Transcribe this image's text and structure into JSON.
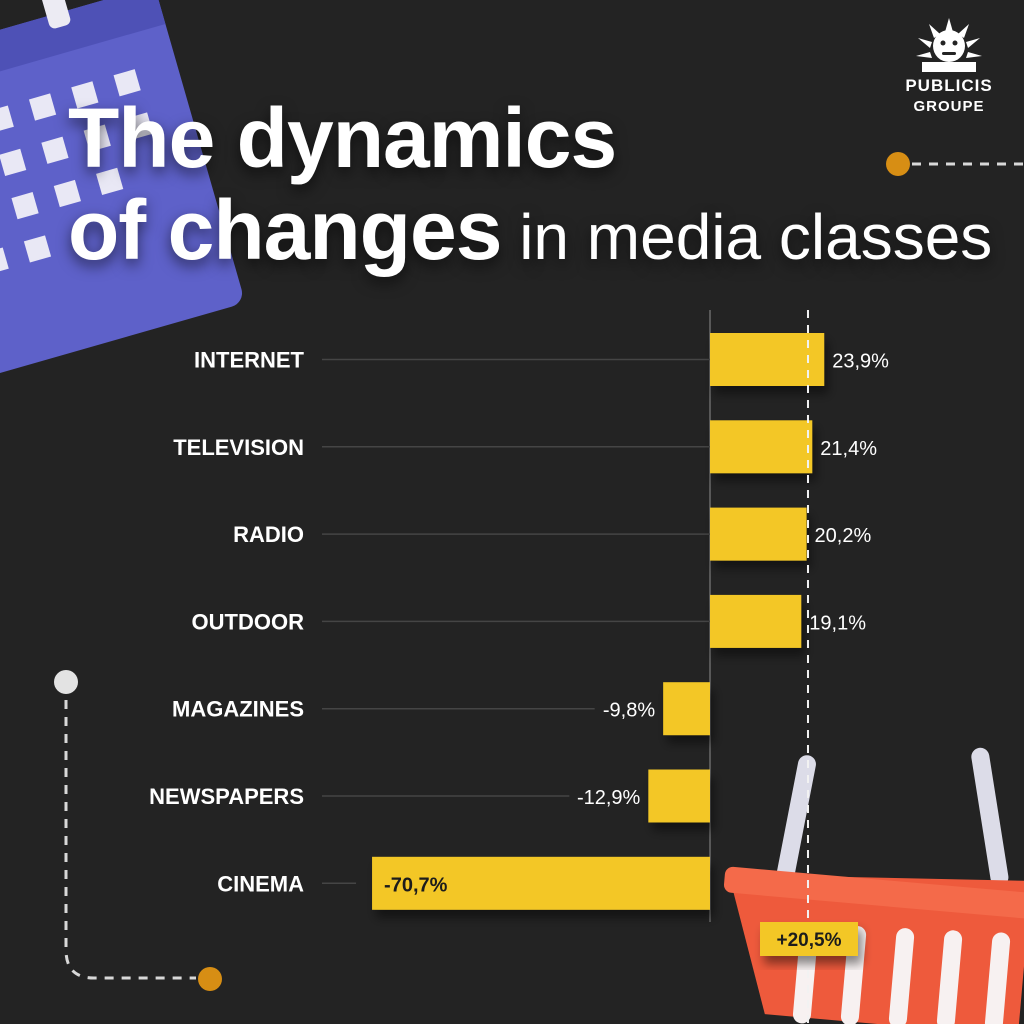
{
  "title": {
    "line1": "The dynamics",
    "line2_bold": "of changes",
    "line2_light": " in media classes"
  },
  "logo": {
    "line1": "PUBLICIS",
    "line2": "GROUPE"
  },
  "colors": {
    "background": "#232323",
    "bar": "#F3C727",
    "basket": "#EE5A3C",
    "calendar": "#5E61C9",
    "accent_dot": "#D78E14"
  },
  "chart_data": {
    "type": "bar",
    "orientation": "horizontal",
    "categories": [
      "INTERNET",
      "TELEVISION",
      "RADIO",
      "OUTDOOR",
      "MAGAZINES",
      "NEWSPAPERS",
      "CINEMA"
    ],
    "values": [
      23.9,
      21.4,
      20.2,
      19.1,
      -9.8,
      -12.9,
      -70.7
    ],
    "value_labels": [
      "23,9%",
      "21,4%",
      "20,2%",
      "19,1%",
      "-9,8%",
      "-12,9%",
      "-70,7%"
    ],
    "reference_line": {
      "value": 20.5,
      "label": "+20,5%"
    },
    "xlim": [
      -70.7,
      23.9
    ],
    "grid": false
  }
}
